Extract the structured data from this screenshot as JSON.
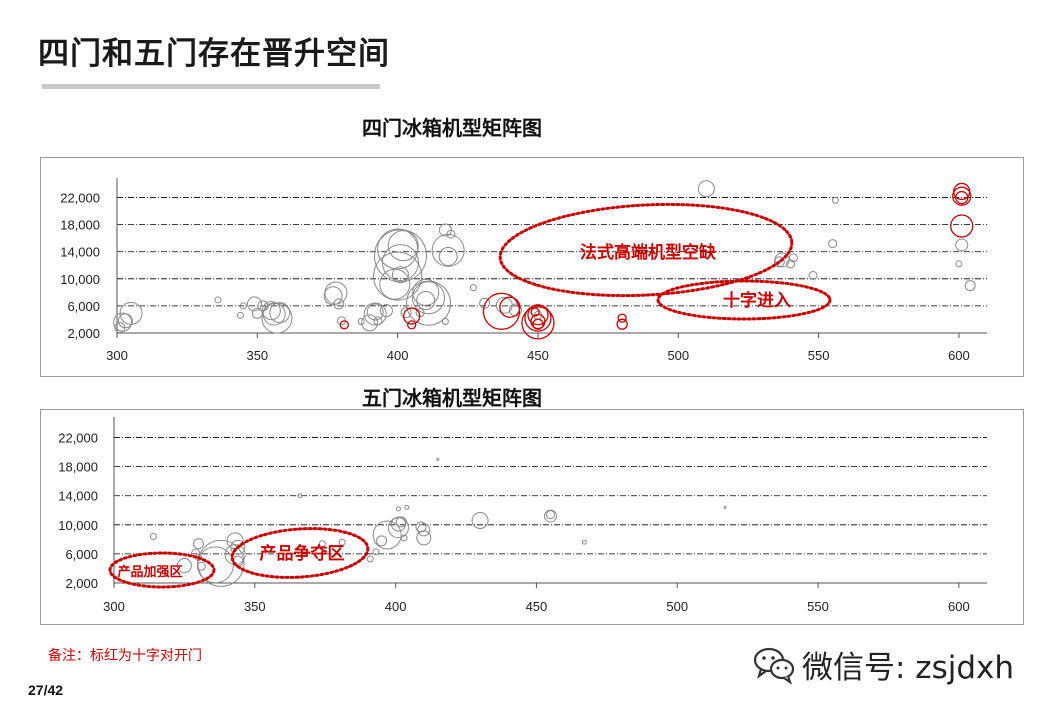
{
  "slide": {
    "title": "四门和五门存在晋升空间",
    "note": "备注：标红为十字对开门",
    "page": "27/42",
    "watermark": "微信号: zsjdxh",
    "watermark_icon": "wechat-icon"
  },
  "colors": {
    "grey": "#8a8a8a",
    "red": "#cc0000",
    "grid": "#000000"
  },
  "chart_data": [
    {
      "type": "bubble",
      "title": "四门冰箱机型矩阵图",
      "xlim": [
        300,
        610
      ],
      "ylim": [
        2000,
        24000
      ],
      "x_ticks": [
        300,
        350,
        400,
        450,
        500,
        550,
        600
      ],
      "y_ticks": [
        2000,
        6000,
        10000,
        14000,
        18000,
        22000
      ],
      "y_tick_labels": [
        "2,000",
        "6,000",
        "10,000",
        "14,000",
        "18,000",
        "22,000"
      ],
      "grid": "horizontal dash-dot",
      "series": [
        {
          "color": "grey",
          "points": [
            [
              301,
              2800,
              5
            ],
            [
              302,
              3600,
              9
            ],
            [
              303,
              3800,
              7
            ],
            [
              305,
              4900,
              11
            ],
            [
              336,
              6900,
              3
            ],
            [
              344,
              4600,
              3
            ],
            [
              345,
              6000,
              3
            ],
            [
              349,
              6300,
              7
            ],
            [
              350,
              4900,
              5
            ],
            [
              352,
              6000,
              5
            ],
            [
              355,
              5300,
              9
            ],
            [
              356,
              4800,
              11
            ],
            [
              357,
              4200,
              15
            ],
            [
              358,
              5000,
              10
            ],
            [
              377,
              7500,
              9
            ],
            [
              379,
              6300,
              5
            ],
            [
              378,
              7900,
              11
            ],
            [
              380,
              3800,
              4
            ],
            [
              387,
              3700,
              3
            ],
            [
              390,
              3500,
              8
            ],
            [
              392,
              4800,
              11
            ],
            [
              392,
              5100,
              8
            ],
            [
              393,
              3800,
              4
            ],
            [
              396,
              5300,
              6
            ],
            [
              399,
              9200,
              15
            ],
            [
              400,
              10400,
              24
            ],
            [
              400,
              14400,
              20
            ],
            [
              401,
              13400,
              26
            ],
            [
              401,
              12400,
              18
            ],
            [
              402,
              14900,
              15
            ],
            [
              401,
              10600,
              8
            ],
            [
              403,
              5000,
              5
            ],
            [
              410,
              6800,
              9
            ],
            [
              410,
              8000,
              13
            ],
            [
              411,
              7200,
              16
            ],
            [
              411,
              6400,
              22
            ],
            [
              408,
              5000,
              4
            ],
            [
              417,
              3700,
              3
            ],
            [
              417,
              17200,
              6
            ],
            [
              418,
              14200,
              16
            ],
            [
              418,
              13300,
              9
            ],
            [
              419,
              16600,
              4
            ],
            [
              427,
              8700,
              3
            ],
            [
              431,
              6400,
              5
            ],
            [
              438,
              6100,
              8
            ],
            [
              442,
              5400,
              6
            ],
            [
              450,
              4600,
              4
            ],
            [
              510,
              23300,
              8
            ],
            [
              536,
              12500,
              5
            ],
            [
              537,
              12800,
              7
            ],
            [
              540,
              12200,
              4
            ],
            [
              541,
              13100,
              4
            ],
            [
              548,
              10500,
              4
            ],
            [
              555,
              15200,
              4
            ],
            [
              556,
              21600,
              3
            ],
            [
              600,
              12200,
              3
            ],
            [
              601,
              15000,
              6
            ],
            [
              604,
              9000,
              5
            ]
          ]
        },
        {
          "color": "red",
          "points": [
            [
              381,
              3200,
              4
            ],
            [
              405,
              3200,
              4
            ],
            [
              405,
              4500,
              8
            ],
            [
              437,
              5200,
              18
            ],
            [
              440,
              5800,
              10
            ],
            [
              450,
              3500,
              16
            ],
            [
              450,
              4200,
              13
            ],
            [
              450,
              4700,
              10
            ],
            [
              450,
              3700,
              7
            ],
            [
              450,
              3300,
              5
            ],
            [
              449,
              5100,
              4
            ],
            [
              480,
              3300,
              5
            ],
            [
              480,
              4200,
              4
            ],
            [
              601,
              22200,
              9
            ],
            [
              601,
              22900,
              8
            ],
            [
              601,
              22000,
              6
            ],
            [
              601,
              17800,
              11
            ]
          ]
        }
      ],
      "annotations": [
        {
          "text": "法式高端机型空缺",
          "shape": "ellipse"
        },
        {
          "text": "十字进入",
          "shape": "ellipse"
        }
      ]
    },
    {
      "type": "bubble",
      "title": "五门冰箱机型矩阵图",
      "xlim": [
        300,
        610
      ],
      "ylim": [
        2000,
        24000
      ],
      "x_ticks": [
        300,
        350,
        400,
        450,
        500,
        550,
        600
      ],
      "y_ticks": [
        2000,
        6000,
        10000,
        14000,
        18000,
        22000
      ],
      "y_tick_labels": [
        "2,000",
        "6,000",
        "10,000",
        "14,000",
        "18,000",
        "22,000"
      ],
      "grid": "horizontal dash-dot",
      "series": [
        {
          "color": "grey",
          "points": [
            [
              314,
              8400,
              3
            ],
            [
              325,
              4400,
              7
            ],
            [
              329,
              6100,
              4
            ],
            [
              330,
              7400,
              5
            ],
            [
              330,
              5500,
              3
            ],
            [
              331,
              4300,
              4
            ],
            [
              336,
              4500,
              18
            ],
            [
              338,
              4700,
              23
            ],
            [
              343,
              7800,
              8
            ],
            [
              343,
              5900,
              10
            ],
            [
              344,
              6900,
              7
            ],
            [
              344,
              5000,
              5
            ],
            [
              366,
              14000,
              2
            ],
            [
              374,
              7400,
              3
            ],
            [
              381,
              7600,
              3
            ],
            [
              391,
              5300,
              3
            ],
            [
              393,
              6300,
              3
            ],
            [
              395,
              7800,
              5
            ],
            [
              397,
              8600,
              14
            ],
            [
              401,
              9600,
              10
            ],
            [
              401,
              10100,
              7
            ],
            [
              402,
              10400,
              5
            ],
            [
              401,
              12200,
              2
            ],
            [
              403,
              8200,
              3
            ],
            [
              404,
              12400,
              2
            ],
            [
              409,
              9700,
              5
            ],
            [
              410,
              9300,
              6
            ],
            [
              410,
              8200,
              7
            ],
            [
              415,
              19000,
              1
            ],
            [
              430,
              10600,
              8
            ],
            [
              455,
              11200,
              6
            ],
            [
              455,
              11400,
              4
            ],
            [
              467,
              7600,
              2
            ],
            [
              517,
              12400,
              1
            ]
          ]
        }
      ],
      "annotations": [
        {
          "text": "产品加强区",
          "shape": "ellipse"
        },
        {
          "text": "产品争夺区",
          "shape": "ellipse"
        }
      ]
    }
  ]
}
